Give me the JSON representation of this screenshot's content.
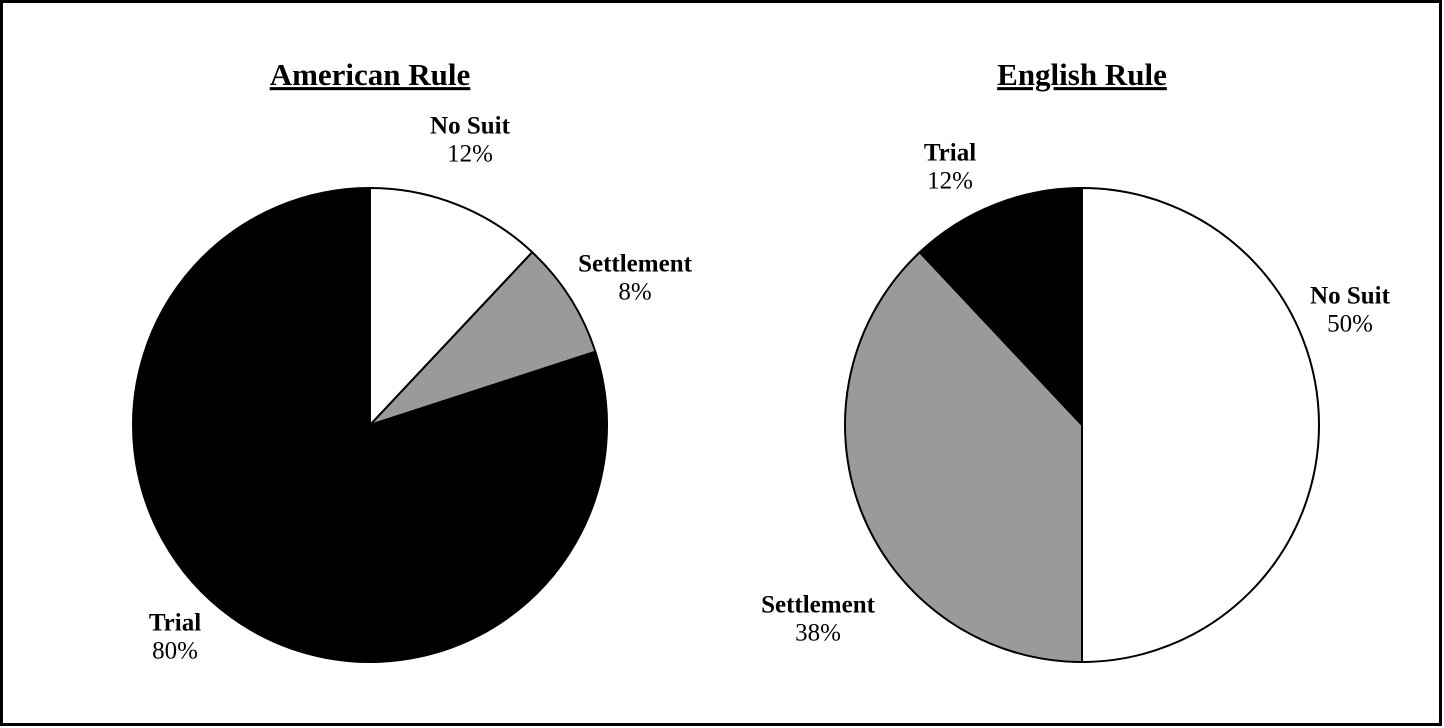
{
  "chart_data": [
    {
      "type": "pie",
      "title": "American Rule",
      "categories": [
        "No Suit",
        "Settlement",
        "Trial"
      ],
      "values": [
        12,
        8,
        80
      ],
      "value_labels": [
        "12%",
        "8%",
        "80%"
      ],
      "colors": [
        "#ffffff",
        "#9a9a9a",
        "#000000"
      ]
    },
    {
      "type": "pie",
      "title": "English Rule",
      "categories": [
        "No Suit",
        "Settlement",
        "Trial"
      ],
      "values": [
        50,
        38,
        12
      ],
      "value_labels": [
        "50%",
        "38%",
        "12%"
      ],
      "colors": [
        "#ffffff",
        "#9a9a9a",
        "#000000"
      ]
    }
  ]
}
